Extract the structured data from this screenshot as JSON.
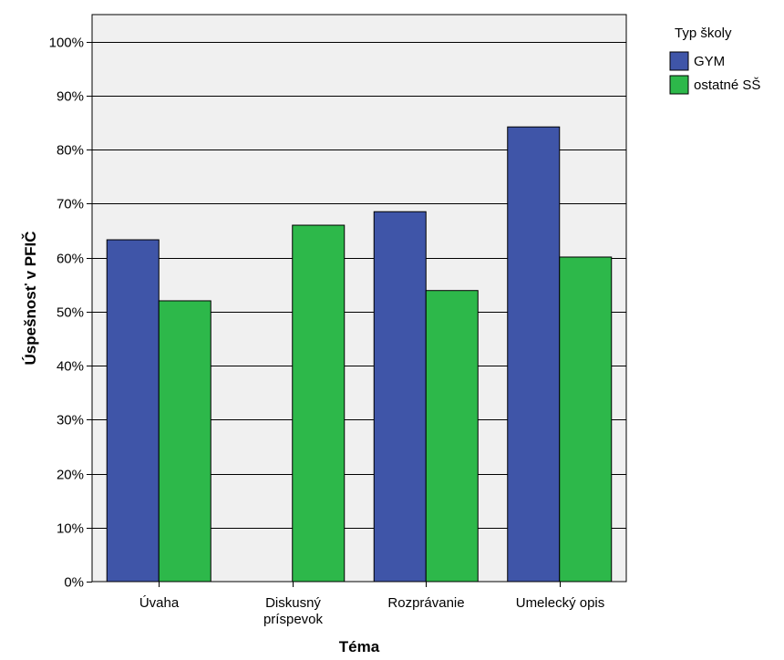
{
  "chart_data": {
    "type": "bar",
    "categories": [
      "Úvaha",
      "Diskusný\npríspevok",
      "Rozprávanie",
      "Umelecký opis"
    ],
    "series": [
      {
        "name": "GYM",
        "values": [
          63.3,
          null,
          68.5,
          84.2
        ],
        "color": "#3f55a8"
      },
      {
        "name": "ostatné SŠ",
        "values": [
          52.0,
          66.0,
          53.9,
          60.1
        ],
        "color": "#2db84a"
      }
    ],
    "xlabel": "Téma",
    "ylabel": "Úspešnosť v PFIČ",
    "ylim": [
      0,
      105
    ],
    "yticks": [
      0,
      10,
      20,
      30,
      40,
      50,
      60,
      70,
      80,
      90,
      100
    ],
    "ytick_labels": [
      "0%",
      "10%",
      "20%",
      "30%",
      "40%",
      "50%",
      "60%",
      "70%",
      "80%",
      "90%",
      "100%"
    ],
    "legend_title": "Typ školy",
    "legend_position": "top-right outside plot",
    "grid": true,
    "plot_background": "#f0f0f0"
  }
}
